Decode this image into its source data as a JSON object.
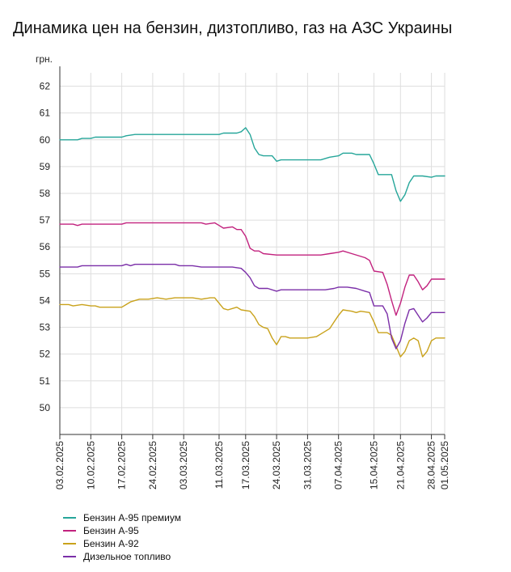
{
  "chart_data": {
    "type": "line",
    "title": "Динамика цен на бензин, дизтопливо, газ на АЗС Украины",
    "ylabel": "грн.",
    "xlabel": "",
    "ylim": [
      49,
      62.5
    ],
    "yticks": [
      50,
      51,
      52,
      53,
      54,
      55,
      56,
      57,
      58,
      59,
      60,
      61,
      62
    ],
    "xlim": [
      "2025-02-03",
      "2025-05-01"
    ],
    "xticks": [
      "03.02.2025",
      "10.02.2025",
      "17.02.2025",
      "24.02.2025",
      "03.03.2025",
      "11.03.2025",
      "17.03.2025",
      "24.03.2025",
      "31.03.2025",
      "07.04.2025",
      "15.04.2025",
      "21.04.2025",
      "28.04.2025",
      "01.05.2025"
    ],
    "grid": true,
    "legend": "bottom-left",
    "series": [
      {
        "name": "Бензин А-95 премиум",
        "color": "#26a69a",
        "points": [
          [
            "2025-02-03",
            60.0
          ],
          [
            "2025-02-07",
            60.0
          ],
          [
            "2025-02-08",
            60.05
          ],
          [
            "2025-02-10",
            60.05
          ],
          [
            "2025-02-11",
            60.1
          ],
          [
            "2025-02-17",
            60.1
          ],
          [
            "2025-02-18",
            60.15
          ],
          [
            "2025-02-20",
            60.2
          ],
          [
            "2025-03-11",
            60.2
          ],
          [
            "2025-03-12",
            60.25
          ],
          [
            "2025-03-15",
            60.25
          ],
          [
            "2025-03-16",
            60.3
          ],
          [
            "2025-03-17",
            60.45
          ],
          [
            "2025-03-18",
            60.2
          ],
          [
            "2025-03-19",
            59.7
          ],
          [
            "2025-03-20",
            59.45
          ],
          [
            "2025-03-21",
            59.4
          ],
          [
            "2025-03-23",
            59.4
          ],
          [
            "2025-03-24",
            59.2
          ],
          [
            "2025-03-25",
            59.25
          ],
          [
            "2025-04-03",
            59.25
          ],
          [
            "2025-04-05",
            59.35
          ],
          [
            "2025-04-07",
            59.4
          ],
          [
            "2025-04-08",
            59.5
          ],
          [
            "2025-04-10",
            59.5
          ],
          [
            "2025-04-11",
            59.45
          ],
          [
            "2025-04-14",
            59.45
          ],
          [
            "2025-04-15",
            59.1
          ],
          [
            "2025-04-16",
            58.7
          ],
          [
            "2025-04-19",
            58.7
          ],
          [
            "2025-04-20",
            58.1
          ],
          [
            "2025-04-21",
            57.7
          ],
          [
            "2025-04-22",
            57.95
          ],
          [
            "2025-04-23",
            58.4
          ],
          [
            "2025-04-24",
            58.65
          ],
          [
            "2025-04-26",
            58.65
          ],
          [
            "2025-04-28",
            58.6
          ],
          [
            "2025-04-29",
            58.65
          ],
          [
            "2025-05-01",
            58.65
          ]
        ]
      },
      {
        "name": "Бензин А-95",
        "color": "#c2227e",
        "points": [
          [
            "2025-02-03",
            56.85
          ],
          [
            "2025-02-06",
            56.85
          ],
          [
            "2025-02-07",
            56.8
          ],
          [
            "2025-02-08",
            56.85
          ],
          [
            "2025-02-17",
            56.85
          ],
          [
            "2025-02-18",
            56.9
          ],
          [
            "2025-03-07",
            56.9
          ],
          [
            "2025-03-08",
            56.85
          ],
          [
            "2025-03-10",
            56.9
          ],
          [
            "2025-03-11",
            56.8
          ],
          [
            "2025-03-12",
            56.7
          ],
          [
            "2025-03-14",
            56.75
          ],
          [
            "2025-03-15",
            56.65
          ],
          [
            "2025-03-16",
            56.65
          ],
          [
            "2025-03-17",
            56.4
          ],
          [
            "2025-03-18",
            55.95
          ],
          [
            "2025-03-19",
            55.85
          ],
          [
            "2025-03-20",
            55.85
          ],
          [
            "2025-03-21",
            55.75
          ],
          [
            "2025-03-24",
            55.7
          ],
          [
            "2025-03-26",
            55.7
          ],
          [
            "2025-04-03",
            55.7
          ],
          [
            "2025-04-05",
            55.75
          ],
          [
            "2025-04-07",
            55.8
          ],
          [
            "2025-04-08",
            55.85
          ],
          [
            "2025-04-10",
            55.75
          ],
          [
            "2025-04-13",
            55.6
          ],
          [
            "2025-04-14",
            55.5
          ],
          [
            "2025-04-15",
            55.1
          ],
          [
            "2025-04-17",
            55.05
          ],
          [
            "2025-04-18",
            54.6
          ],
          [
            "2025-04-19",
            54.0
          ],
          [
            "2025-04-20",
            53.45
          ],
          [
            "2025-04-21",
            53.9
          ],
          [
            "2025-04-22",
            54.5
          ],
          [
            "2025-04-23",
            54.95
          ],
          [
            "2025-04-24",
            54.95
          ],
          [
            "2025-04-25",
            54.7
          ],
          [
            "2025-04-26",
            54.4
          ],
          [
            "2025-04-27",
            54.55
          ],
          [
            "2025-04-28",
            54.8
          ],
          [
            "2025-05-01",
            54.8
          ]
        ]
      },
      {
        "name": "Бензин А-92",
        "color": "#c9a21b",
        "points": [
          [
            "2025-02-03",
            53.85
          ],
          [
            "2025-02-05",
            53.85
          ],
          [
            "2025-02-06",
            53.8
          ],
          [
            "2025-02-08",
            53.85
          ],
          [
            "2025-02-10",
            53.8
          ],
          [
            "2025-02-11",
            53.8
          ],
          [
            "2025-02-12",
            53.75
          ],
          [
            "2025-02-14",
            53.75
          ],
          [
            "2025-02-17",
            53.75
          ],
          [
            "2025-02-18",
            53.85
          ],
          [
            "2025-02-19",
            53.95
          ],
          [
            "2025-02-21",
            54.05
          ],
          [
            "2025-02-23",
            54.05
          ],
          [
            "2025-02-25",
            54.1
          ],
          [
            "2025-02-27",
            54.05
          ],
          [
            "2025-03-01",
            54.1
          ],
          [
            "2025-03-05",
            54.1
          ],
          [
            "2025-03-07",
            54.05
          ],
          [
            "2025-03-09",
            54.1
          ],
          [
            "2025-03-10",
            54.1
          ],
          [
            "2025-03-11",
            53.9
          ],
          [
            "2025-03-12",
            53.7
          ],
          [
            "2025-03-13",
            53.65
          ],
          [
            "2025-03-15",
            53.75
          ],
          [
            "2025-03-16",
            53.65
          ],
          [
            "2025-03-18",
            53.6
          ],
          [
            "2025-03-19",
            53.4
          ],
          [
            "2025-03-20",
            53.1
          ],
          [
            "2025-03-21",
            53.0
          ],
          [
            "2025-03-22",
            52.95
          ],
          [
            "2025-03-23",
            52.6
          ],
          [
            "2025-03-24",
            52.35
          ],
          [
            "2025-03-25",
            52.65
          ],
          [
            "2025-03-26",
            52.65
          ],
          [
            "2025-03-27",
            52.6
          ],
          [
            "2025-03-31",
            52.6
          ],
          [
            "2025-04-02",
            52.65
          ],
          [
            "2025-04-03",
            52.75
          ],
          [
            "2025-04-05",
            52.95
          ],
          [
            "2025-04-06",
            53.2
          ],
          [
            "2025-04-07",
            53.45
          ],
          [
            "2025-04-08",
            53.65
          ],
          [
            "2025-04-10",
            53.6
          ],
          [
            "2025-04-11",
            53.55
          ],
          [
            "2025-04-12",
            53.6
          ],
          [
            "2025-04-14",
            53.55
          ],
          [
            "2025-04-15",
            53.2
          ],
          [
            "2025-04-16",
            52.8
          ],
          [
            "2025-04-18",
            52.8
          ],
          [
            "2025-04-19",
            52.7
          ],
          [
            "2025-04-20",
            52.3
          ],
          [
            "2025-04-21",
            51.9
          ],
          [
            "2025-04-22",
            52.1
          ],
          [
            "2025-04-23",
            52.5
          ],
          [
            "2025-04-24",
            52.6
          ],
          [
            "2025-04-25",
            52.5
          ],
          [
            "2025-04-26",
            51.9
          ],
          [
            "2025-04-27",
            52.1
          ],
          [
            "2025-04-28",
            52.5
          ],
          [
            "2025-04-29",
            52.6
          ],
          [
            "2025-05-01",
            52.6
          ]
        ]
      },
      {
        "name": "Дизельное топливо",
        "color": "#7b2fa8",
        "points": [
          [
            "2025-02-03",
            55.25
          ],
          [
            "2025-02-07",
            55.25
          ],
          [
            "2025-02-08",
            55.3
          ],
          [
            "2025-02-17",
            55.3
          ],
          [
            "2025-02-18",
            55.35
          ],
          [
            "2025-02-19",
            55.3
          ],
          [
            "2025-02-20",
            55.35
          ],
          [
            "2025-03-01",
            55.35
          ],
          [
            "2025-03-02",
            55.3
          ],
          [
            "2025-03-05",
            55.3
          ],
          [
            "2025-03-07",
            55.25
          ],
          [
            "2025-03-14",
            55.25
          ],
          [
            "2025-03-16",
            55.2
          ],
          [
            "2025-03-17",
            55.05
          ],
          [
            "2025-03-18",
            54.85
          ],
          [
            "2025-03-19",
            54.55
          ],
          [
            "2025-03-20",
            54.45
          ],
          [
            "2025-03-22",
            54.45
          ],
          [
            "2025-03-24",
            54.35
          ],
          [
            "2025-03-25",
            54.4
          ],
          [
            "2025-04-04",
            54.4
          ],
          [
            "2025-04-06",
            54.45
          ],
          [
            "2025-04-07",
            54.5
          ],
          [
            "2025-04-09",
            54.5
          ],
          [
            "2025-04-11",
            54.45
          ],
          [
            "2025-04-13",
            54.35
          ],
          [
            "2025-04-14",
            54.3
          ],
          [
            "2025-04-15",
            53.8
          ],
          [
            "2025-04-17",
            53.8
          ],
          [
            "2025-04-18",
            53.5
          ],
          [
            "2025-04-19",
            52.6
          ],
          [
            "2025-04-20",
            52.2
          ],
          [
            "2025-04-21",
            52.5
          ],
          [
            "2025-04-22",
            53.15
          ],
          [
            "2025-04-23",
            53.65
          ],
          [
            "2025-04-24",
            53.7
          ],
          [
            "2025-04-25",
            53.45
          ],
          [
            "2025-04-26",
            53.2
          ],
          [
            "2025-04-27",
            53.35
          ],
          [
            "2025-04-28",
            53.55
          ],
          [
            "2025-05-01",
            53.55
          ]
        ]
      }
    ]
  }
}
